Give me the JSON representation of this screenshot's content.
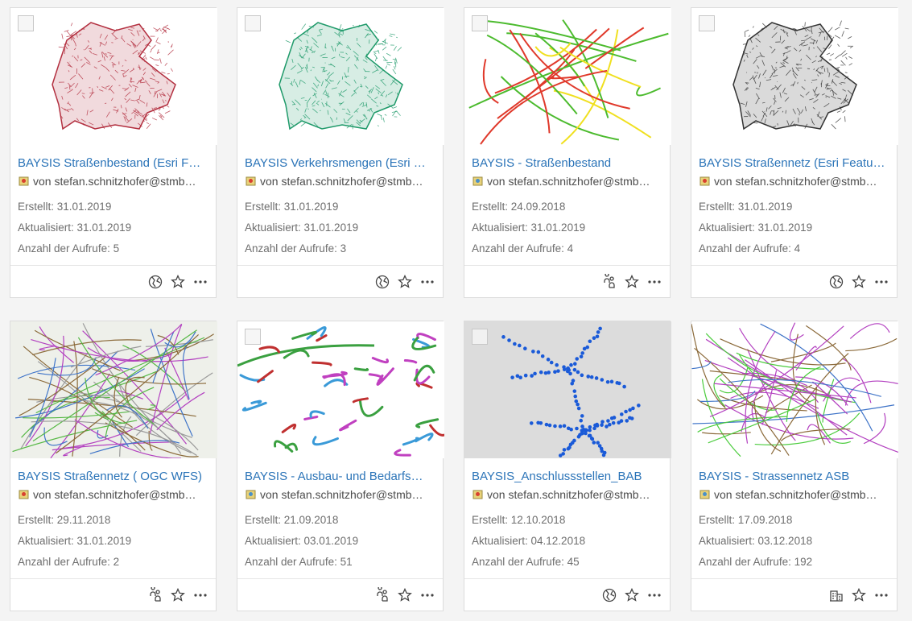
{
  "cards": [
    {
      "title": "BAYSIS Straßenbestand (Esri F…",
      "owner": "von stefan.schnitzhofer@stmb…",
      "created": "Erstellt: 31.01.2019",
      "updated": "Aktualisiert: 31.01.2019",
      "views": "Anzahl der Aufrufe: 5"
    },
    {
      "title": "BAYSIS Verkehrsmengen (Esri …",
      "owner": "von stefan.schnitzhofer@stmb…",
      "created": "Erstellt: 31.01.2019",
      "updated": "Aktualisiert: 31.01.2019",
      "views": "Anzahl der Aufrufe: 3"
    },
    {
      "title": "BAYSIS - Straßenbestand",
      "owner": "von stefan.schnitzhofer@stmb…",
      "created": "Erstellt: 24.09.2018",
      "updated": "Aktualisiert: 31.01.2019",
      "views": "Anzahl der Aufrufe: 4"
    },
    {
      "title": "BAYSIS Straßennetz (Esri Featu…",
      "owner": "von stefan.schnitzhofer@stmb…",
      "created": "Erstellt: 31.01.2019",
      "updated": "Aktualisiert: 31.01.2019",
      "views": "Anzahl der Aufrufe: 4"
    },
    {
      "title": "BAYSIS Straßennetz ( OGC WFS)",
      "owner": "von stefan.schnitzhofer@stmb…",
      "created": "Erstellt: 29.11.2018",
      "updated": "Aktualisiert: 31.01.2019",
      "views": "Anzahl der Aufrufe: 2"
    },
    {
      "title": "BAYSIS - Ausbau- und Bedarfs…",
      "owner": "von stefan.schnitzhofer@stmb…",
      "created": "Erstellt: 21.09.2018",
      "updated": "Aktualisiert: 03.01.2019",
      "views": "Anzahl der Aufrufe: 51"
    },
    {
      "title": "BAYSIS_Anschlussstellen_BAB",
      "owner": "von stefan.schnitzhofer@stmb…",
      "created": "Erstellt: 12.10.2018",
      "updated": "Aktualisiert: 04.12.2018",
      "views": "Anzahl der Aufrufe: 45"
    },
    {
      "title": "BAYSIS - Strassennetz ASB",
      "owner": "von stefan.schnitzhofer@stmb…",
      "created": "Erstellt: 17.09.2018",
      "updated": "Aktualisiert: 03.12.2018",
      "views": "Anzahl der Aufrufe: 192"
    }
  ]
}
